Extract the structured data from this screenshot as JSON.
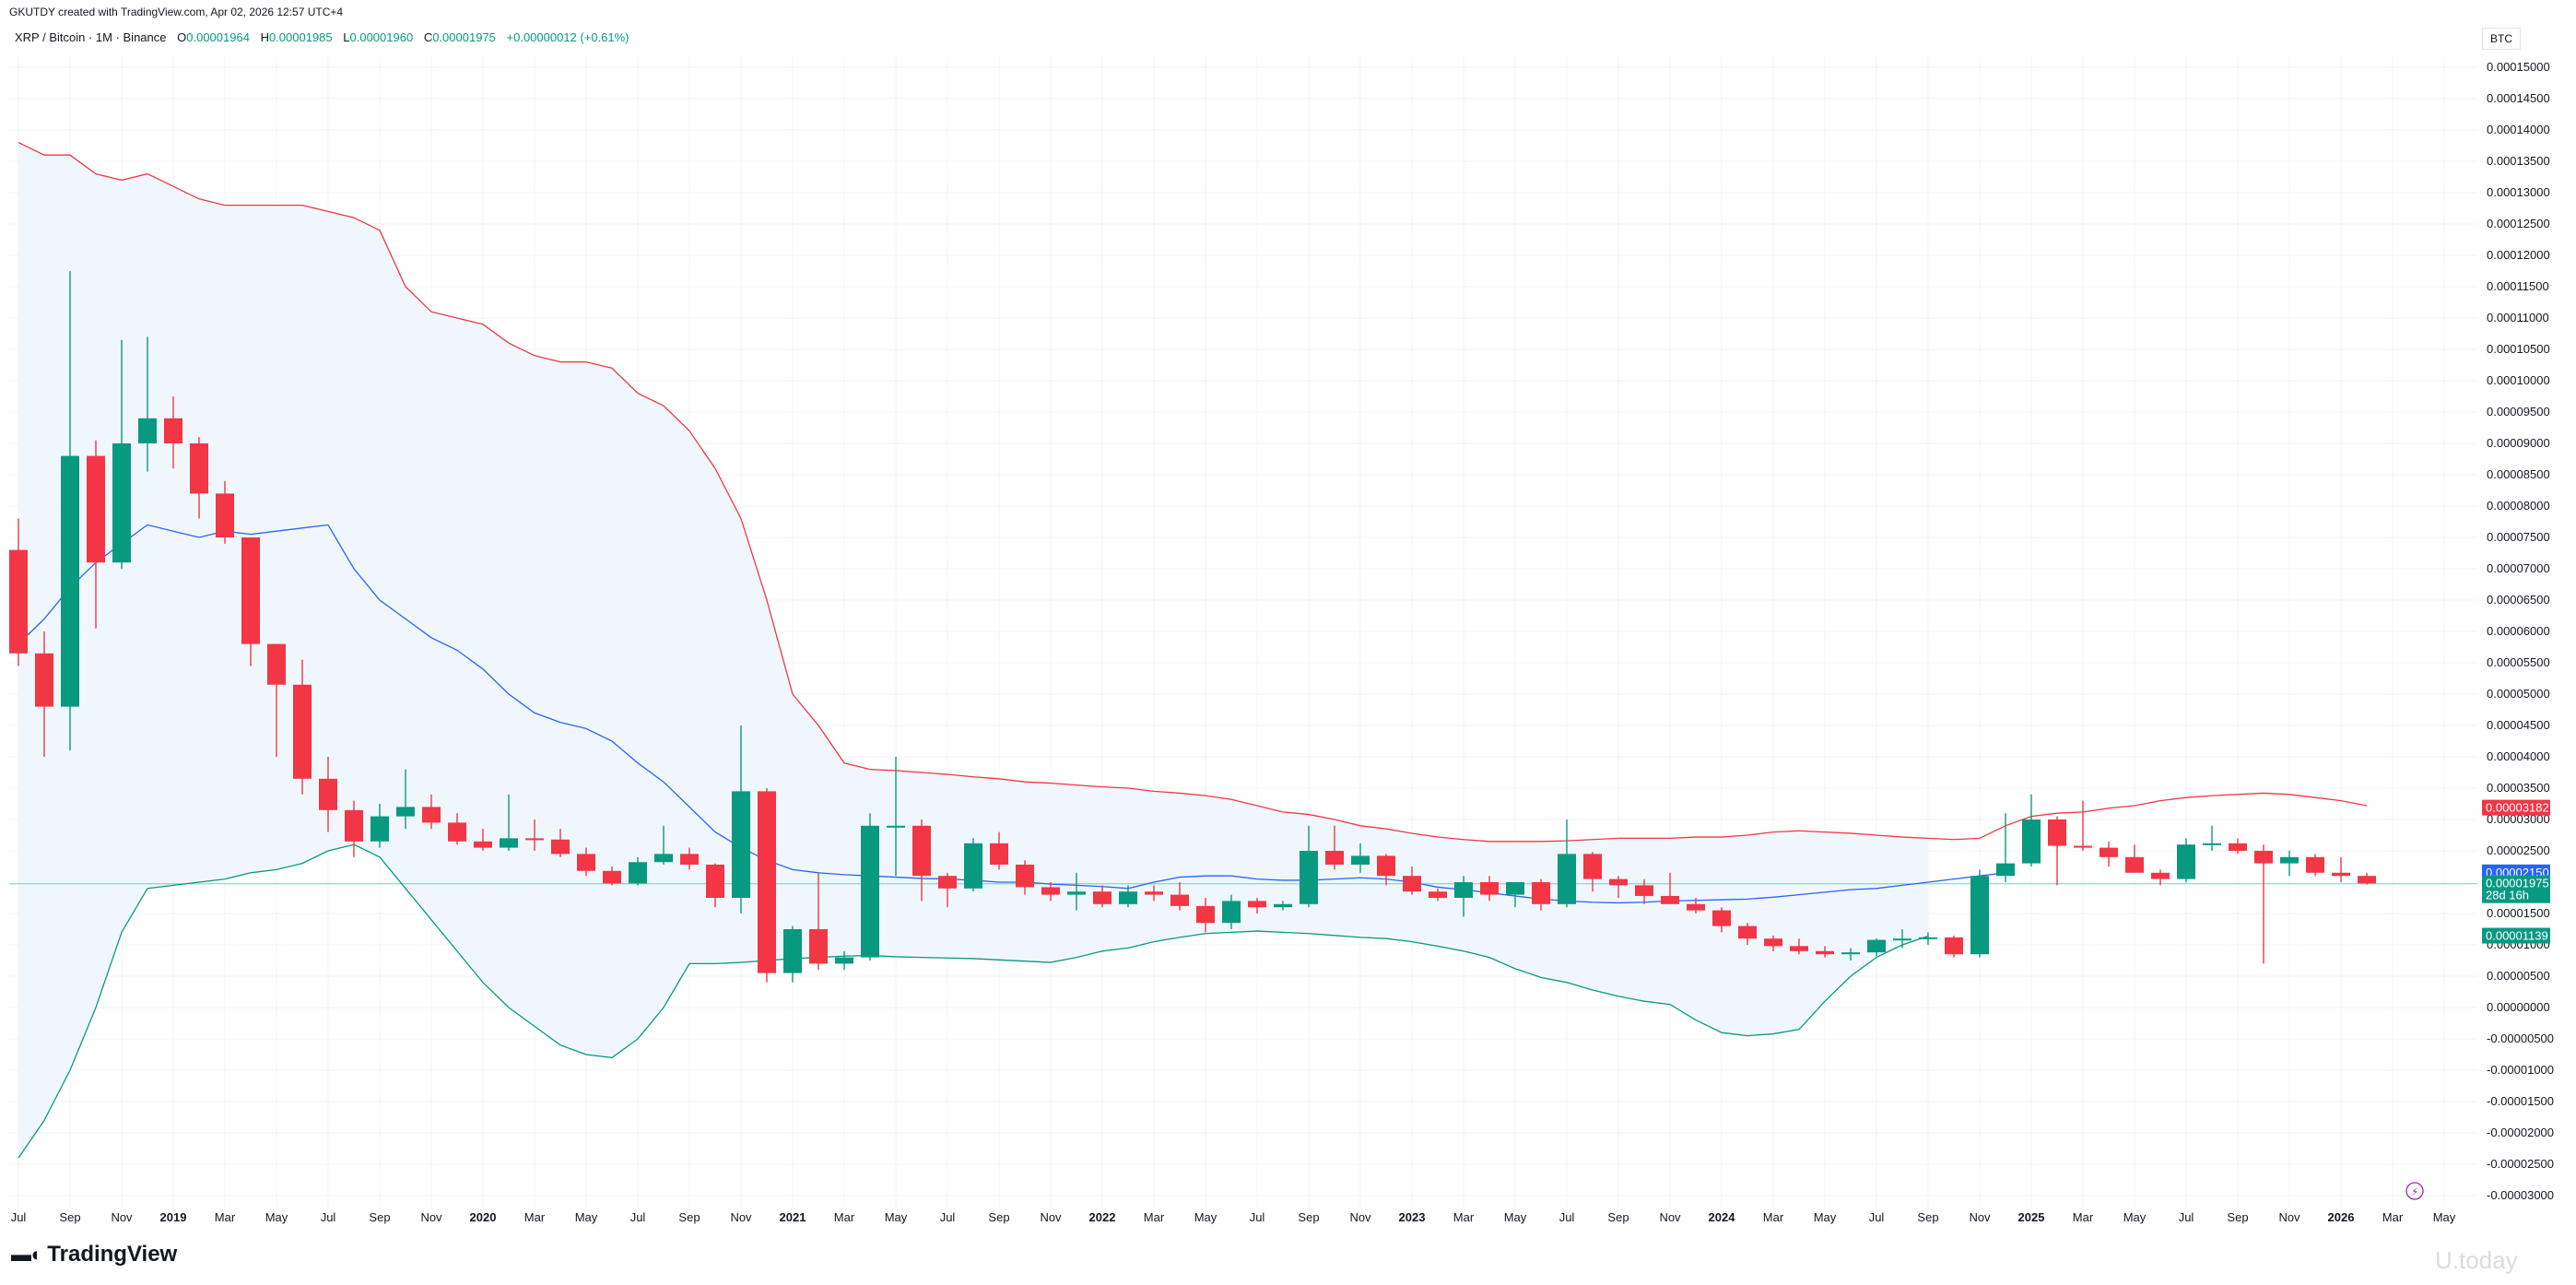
{
  "header": {
    "credit": "GKUTDY created with TradingView.com, Apr 02, 2026 12:57 UTC+4",
    "symbol": "XRP / Bitcoin · 1M · Binance",
    "o_label": "O",
    "o_val": "0.00001964",
    "h_label": "H",
    "h_val": "0.00001985",
    "l_label": "L",
    "l_val": "0.00001960",
    "c_label": "C",
    "c_val": "0.00001975",
    "change": "+0.00000012 (+0.61%)"
  },
  "currency_label": "BTC",
  "brand": "TradingView",
  "watermark": "U.today",
  "colors": {
    "up": "#089981",
    "down": "#f23645",
    "upper_band": "#f23645",
    "basis": "#2962ff",
    "lower_band": "#089981",
    "fill": "#eef6fc"
  },
  "price_tags": [
    {
      "value": "0.00003182",
      "color": "#f23645"
    },
    {
      "value": "0.00002150",
      "color": "#2962ff"
    },
    {
      "value": "0.00001975",
      "sub": "28d 16h",
      "color": "#089981"
    },
    {
      "value": "0.00001139",
      "color": "#089981"
    }
  ],
  "chart_data": {
    "type": "candlestick",
    "ylim": [
      -3e-05,
      0.000155
    ],
    "y_ticks": [
      "0.00015000",
      "0.00014500",
      "0.00014000",
      "0.00013500",
      "0.00013000",
      "0.00012500",
      "0.00012000",
      "0.00011500",
      "0.00011000",
      "0.00010500",
      "0.00010000",
      "0.00009500",
      "0.00009000",
      "0.00008500",
      "0.00008000",
      "0.00007500",
      "0.00007000",
      "0.00006500",
      "0.00006000",
      "0.00005500",
      "0.00005000",
      "0.00004500",
      "0.00004000",
      "0.00003500",
      "0.00003000",
      "0.00002500",
      "0.00002000",
      "0.00001500",
      "0.00001000",
      "0.00000500",
      "0.00000000",
      "-0.00000500",
      "-0.00001000",
      "-0.00001500",
      "-0.00002000",
      "-0.00002500",
      "-0.00003000"
    ],
    "x_labels": [
      {
        "label": "Jul",
        "bold": false
      },
      {
        "label": "Sep",
        "bold": false
      },
      {
        "label": "Nov",
        "bold": false
      },
      {
        "label": "2019",
        "bold": true
      },
      {
        "label": "Mar",
        "bold": false
      },
      {
        "label": "May",
        "bold": false
      },
      {
        "label": "Jul",
        "bold": false
      },
      {
        "label": "Sep",
        "bold": false
      },
      {
        "label": "Nov",
        "bold": false
      },
      {
        "label": "2020",
        "bold": true
      },
      {
        "label": "Mar",
        "bold": false
      },
      {
        "label": "May",
        "bold": false
      },
      {
        "label": "Jul",
        "bold": false
      },
      {
        "label": "Sep",
        "bold": false
      },
      {
        "label": "Nov",
        "bold": false
      },
      {
        "label": "2021",
        "bold": true
      },
      {
        "label": "Mar",
        "bold": false
      },
      {
        "label": "May",
        "bold": false
      },
      {
        "label": "Jul",
        "bold": false
      },
      {
        "label": "Sep",
        "bold": false
      },
      {
        "label": "Nov",
        "bold": false
      },
      {
        "label": "2022",
        "bold": true
      },
      {
        "label": "Mar",
        "bold": false
      },
      {
        "label": "May",
        "bold": false
      },
      {
        "label": "Jul",
        "bold": false
      },
      {
        "label": "Sep",
        "bold": false
      },
      {
        "label": "Nov",
        "bold": false
      },
      {
        "label": "2023",
        "bold": true
      },
      {
        "label": "Mar",
        "bold": false
      },
      {
        "label": "May",
        "bold": false
      },
      {
        "label": "Jul",
        "bold": false
      },
      {
        "label": "Sep",
        "bold": false
      },
      {
        "label": "Nov",
        "bold": false
      },
      {
        "label": "2024",
        "bold": true
      },
      {
        "label": "Mar",
        "bold": false
      },
      {
        "label": "May",
        "bold": false
      },
      {
        "label": "Jul",
        "bold": false
      },
      {
        "label": "Sep",
        "bold": false
      },
      {
        "label": "Nov",
        "bold": false
      },
      {
        "label": "2025",
        "bold": true
      },
      {
        "label": "Mar",
        "bold": false
      },
      {
        "label": "May",
        "bold": false
      },
      {
        "label": "Jul",
        "bold": false
      },
      {
        "label": "Sep",
        "bold": false
      },
      {
        "label": "Nov",
        "bold": false
      },
      {
        "label": "2026",
        "bold": true
      },
      {
        "label": "Mar",
        "bold": false
      },
      {
        "label": "May",
        "bold": false
      }
    ],
    "candles": [
      {
        "o": 7.3e-05,
        "h": 7.8e-05,
        "l": 5.45e-05,
        "c": 5.65e-05
      },
      {
        "o": 5.65e-05,
        "h": 6e-05,
        "l": 4e-05,
        "c": 4.8e-05
      },
      {
        "o": 4.8e-05,
        "h": 0.0001175,
        "l": 4.1e-05,
        "c": 8.8e-05
      },
      {
        "o": 8.8e-05,
        "h": 9.05e-05,
        "l": 6.05e-05,
        "c": 7.1e-05
      },
      {
        "o": 7.1e-05,
        "h": 0.0001065,
        "l": 7e-05,
        "c": 9e-05
      },
      {
        "o": 9e-05,
        "h": 0.000107,
        "l": 8.55e-05,
        "c": 9.4e-05
      },
      {
        "o": 9.4e-05,
        "h": 9.75e-05,
        "l": 8.6e-05,
        "c": 9e-05
      },
      {
        "o": 9e-05,
        "h": 9.1e-05,
        "l": 7.8e-05,
        "c": 8.2e-05
      },
      {
        "o": 8.2e-05,
        "h": 8.4e-05,
        "l": 7.4e-05,
        "c": 7.5e-05
      },
      {
        "o": 7.5e-05,
        "h": 7.5e-05,
        "l": 5.45e-05,
        "c": 5.8e-05
      },
      {
        "o": 5.8e-05,
        "h": 5.8e-05,
        "l": 4e-05,
        "c": 5.15e-05
      },
      {
        "o": 5.15e-05,
        "h": 5.55e-05,
        "l": 3.4e-05,
        "c": 3.65e-05
      },
      {
        "o": 3.65e-05,
        "h": 4e-05,
        "l": 2.8e-05,
        "c": 3.15e-05
      },
      {
        "o": 3.15e-05,
        "h": 3.3e-05,
        "l": 2.4e-05,
        "c": 2.65e-05
      },
      {
        "o": 2.65e-05,
        "h": 3.25e-05,
        "l": 2.55e-05,
        "c": 3.05e-05
      },
      {
        "o": 3.05e-05,
        "h": 3.8e-05,
        "l": 2.85e-05,
        "c": 3.2e-05
      },
      {
        "o": 3.2e-05,
        "h": 3.4e-05,
        "l": 2.85e-05,
        "c": 2.95e-05
      },
      {
        "o": 2.95e-05,
        "h": 3.1e-05,
        "l": 2.6e-05,
        "c": 2.65e-05
      },
      {
        "o": 2.65e-05,
        "h": 2.85e-05,
        "l": 2.5e-05,
        "c": 2.55e-05
      },
      {
        "o": 2.55e-05,
        "h": 3.4e-05,
        "l": 2.5e-05,
        "c": 2.7e-05
      },
      {
        "o": 2.7e-05,
        "h": 3e-05,
        "l": 2.5e-05,
        "c": 2.68e-05
      },
      {
        "o": 2.68e-05,
        "h": 2.85e-05,
        "l": 2.4e-05,
        "c": 2.45e-05
      },
      {
        "o": 2.45e-05,
        "h": 2.55e-05,
        "l": 2.1e-05,
        "c": 2.18e-05
      },
      {
        "o": 2.18e-05,
        "h": 2.25e-05,
        "l": 1.95e-05,
        "c": 1.98e-05
      },
      {
        "o": 1.98e-05,
        "h": 2.4e-05,
        "l": 1.95e-05,
        "c": 2.32e-05
      },
      {
        "o": 2.32e-05,
        "h": 2.9e-05,
        "l": 2.28e-05,
        "c": 2.45e-05
      },
      {
        "o": 2.45e-05,
        "h": 2.55e-05,
        "l": 2.2e-05,
        "c": 2.28e-05
      },
      {
        "o": 2.28e-05,
        "h": 2.3e-05,
        "l": 1.6e-05,
        "c": 1.75e-05
      },
      {
        "o": 1.75e-05,
        "h": 4.5e-05,
        "l": 1.5e-05,
        "c": 3.45e-05
      },
      {
        "o": 3.45e-05,
        "h": 3.5e-05,
        "l": 4e-06,
        "c": 5.5e-06
      },
      {
        "o": 5.5e-06,
        "h": 1.3e-05,
        "l": 4e-06,
        "c": 1.25e-05
      },
      {
        "o": 1.25e-05,
        "h": 2.15e-05,
        "l": 6e-06,
        "c": 7e-06
      },
      {
        "o": 7e-06,
        "h": 9e-06,
        "l": 6e-06,
        "c": 8e-06
      },
      {
        "o": 8e-06,
        "h": 3.1e-05,
        "l": 7.5e-06,
        "c": 2.9e-05
      },
      {
        "o": 2.9e-05,
        "h": 4e-05,
        "l": 2.1e-05,
        "c": 2.9e-05
      },
      {
        "o": 2.9e-05,
        "h": 3e-05,
        "l": 1.7e-05,
        "c": 2.1e-05
      },
      {
        "o": 2.1e-05,
        "h": 2.15e-05,
        "l": 1.6e-05,
        "c": 1.9e-05
      },
      {
        "o": 1.9e-05,
        "h": 2.7e-05,
        "l": 1.85e-05,
        "c": 2.62e-05
      },
      {
        "o": 2.62e-05,
        "h": 2.8e-05,
        "l": 2.2e-05,
        "c": 2.28e-05
      },
      {
        "o": 2.28e-05,
        "h": 2.35e-05,
        "l": 1.8e-05,
        "c": 1.92e-05
      },
      {
        "o": 1.92e-05,
        "h": 2e-05,
        "l": 1.7e-05,
        "c": 1.8e-05
      },
      {
        "o": 1.8e-05,
        "h": 2.15e-05,
        "l": 1.55e-05,
        "c": 1.85e-05
      },
      {
        "o": 1.85e-05,
        "h": 1.95e-05,
        "l": 1.6e-05,
        "c": 1.65e-05
      },
      {
        "o": 1.65e-05,
        "h": 1.95e-05,
        "l": 1.6e-05,
        "c": 1.85e-05
      },
      {
        "o": 1.85e-05,
        "h": 1.95e-05,
        "l": 1.7e-05,
        "c": 1.8e-05
      },
      {
        "o": 1.8e-05,
        "h": 2e-05,
        "l": 1.55e-05,
        "c": 1.62e-05
      },
      {
        "o": 1.62e-05,
        "h": 1.75e-05,
        "l": 1.2e-05,
        "c": 1.35e-05
      },
      {
        "o": 1.35e-05,
        "h": 1.8e-05,
        "l": 1.25e-05,
        "c": 1.7e-05
      },
      {
        "o": 1.7e-05,
        "h": 1.75e-05,
        "l": 1.5e-05,
        "c": 1.6e-05
      },
      {
        "o": 1.6e-05,
        "h": 1.7e-05,
        "l": 1.55e-05,
        "c": 1.65e-05
      },
      {
        "o": 1.65e-05,
        "h": 2.9e-05,
        "l": 1.6e-05,
        "c": 2.5e-05
      },
      {
        "o": 2.5e-05,
        "h": 2.9e-05,
        "l": 2.2e-05,
        "c": 2.28e-05
      },
      {
        "o": 2.28e-05,
        "h": 2.62e-05,
        "l": 2.15e-05,
        "c": 2.42e-05
      },
      {
        "o": 2.42e-05,
        "h": 2.45e-05,
        "l": 1.95e-05,
        "c": 2.1e-05
      },
      {
        "o": 2.1e-05,
        "h": 2.25e-05,
        "l": 1.8e-05,
        "c": 1.85e-05
      },
      {
        "o": 1.85e-05,
        "h": 1.9e-05,
        "l": 1.7e-05,
        "c": 1.75e-05
      },
      {
        "o": 1.75e-05,
        "h": 2.1e-05,
        "l": 1.45e-05,
        "c": 2e-05
      },
      {
        "o": 2e-05,
        "h": 2.1e-05,
        "l": 1.7e-05,
        "c": 1.8e-05
      },
      {
        "o": 1.8e-05,
        "h": 2e-05,
        "l": 1.6e-05,
        "c": 2e-05
      },
      {
        "o": 2e-05,
        "h": 2.05e-05,
        "l": 1.55e-05,
        "c": 1.65e-05
      },
      {
        "o": 1.65e-05,
        "h": 3e-05,
        "l": 1.6e-05,
        "c": 2.45e-05
      },
      {
        "o": 2.45e-05,
        "h": 2.48e-05,
        "l": 1.85e-05,
        "c": 2.05e-05
      },
      {
        "o": 2.05e-05,
        "h": 2.1e-05,
        "l": 1.75e-05,
        "c": 1.95e-05
      },
      {
        "o": 1.95e-05,
        "h": 2.05e-05,
        "l": 1.65e-05,
        "c": 1.78e-05
      },
      {
        "o": 1.78e-05,
        "h": 2.15e-05,
        "l": 1.65e-05,
        "c": 1.65e-05
      },
      {
        "o": 1.65e-05,
        "h": 1.75e-05,
        "l": 1.5e-05,
        "c": 1.55e-05
      },
      {
        "o": 1.55e-05,
        "h": 1.6e-05,
        "l": 1.2e-05,
        "c": 1.3e-05
      },
      {
        "o": 1.3e-05,
        "h": 1.35e-05,
        "l": 1e-05,
        "c": 1.1e-05
      },
      {
        "o": 1.1e-05,
        "h": 1.15e-05,
        "l": 9e-06,
        "c": 9.8e-06
      },
      {
        "o": 9.8e-06,
        "h": 1.1e-05,
        "l": 8.5e-06,
        "c": 9e-06
      },
      {
        "o": 9e-06,
        "h": 9.8e-06,
        "l": 8e-06,
        "c": 8.5e-06
      },
      {
        "o": 8.5e-06,
        "h": 9.5e-06,
        "l": 7.5e-06,
        "c": 8.8e-06
      },
      {
        "o": 8.8e-06,
        "h": 1.1e-05,
        "l": 8.2e-06,
        "c": 1.08e-05
      },
      {
        "o": 1.08e-05,
        "h": 1.25e-05,
        "l": 9.5e-06,
        "c": 1.1e-05
      },
      {
        "o": 1.1e-05,
        "h": 1.2e-05,
        "l": 1e-05,
        "c": 1.12e-05
      },
      {
        "o": 1.12e-05,
        "h": 1.15e-05,
        "l": 8e-06,
        "c": 8.5e-06
      },
      {
        "o": 8.5e-06,
        "h": 2.2e-05,
        "l": 8e-06,
        "c": 2.1e-05
      },
      {
        "o": 2.1e-05,
        "h": 3.1e-05,
        "l": 2e-05,
        "c": 2.3e-05
      },
      {
        "o": 2.3e-05,
        "h": 3.4e-05,
        "l": 2.25e-05,
        "c": 3e-05
      },
      {
        "o": 3e-05,
        "h": 3.05e-05,
        "l": 1.95e-05,
        "c": 2.58e-05
      },
      {
        "o": 2.58e-05,
        "h": 3.3e-05,
        "l": 2.5e-05,
        "c": 2.55e-05
      },
      {
        "o": 2.55e-05,
        "h": 2.65e-05,
        "l": 2.25e-05,
        "c": 2.4e-05
      },
      {
        "o": 2.4e-05,
        "h": 2.6e-05,
        "l": 2.15e-05,
        "c": 2.15e-05
      },
      {
        "o": 2.15e-05,
        "h": 2.2e-05,
        "l": 1.95e-05,
        "c": 2.05e-05
      },
      {
        "o": 2.05e-05,
        "h": 2.7e-05,
        "l": 2e-05,
        "c": 2.6e-05
      },
      {
        "o": 2.6e-05,
        "h": 2.9e-05,
        "l": 2.5e-05,
        "c": 2.62e-05
      },
      {
        "o": 2.62e-05,
        "h": 2.7e-05,
        "l": 2.45e-05,
        "c": 2.5e-05
      },
      {
        "o": 2.5e-05,
        "h": 2.6e-05,
        "l": 7e-06,
        "c": 2.3e-05
      },
      {
        "o": 2.3e-05,
        "h": 2.5e-05,
        "l": 2.1e-05,
        "c": 2.4e-05
      },
      {
        "o": 2.4e-05,
        "h": 2.45e-05,
        "l": 2.1e-05,
        "c": 2.15e-05
      },
      {
        "o": 2.15e-05,
        "h": 2.4e-05,
        "l": 2e-05,
        "c": 2.1e-05
      },
      {
        "o": 2.1e-05,
        "h": 2.15e-05,
        "l": 1.96e-05,
        "c": 1.98e-05
      }
    ],
    "upper_band": [
      0.000138,
      0.000136,
      0.000136,
      0.000133,
      0.000132,
      0.000133,
      0.000131,
      0.000129,
      0.000128,
      0.000128,
      0.000128,
      0.000128,
      0.000127,
      0.000126,
      0.000124,
      0.000115,
      0.000111,
      0.00011,
      0.000109,
      0.000106,
      0.000104,
      0.000103,
      0.000103,
      0.000102,
      9.8e-05,
      9.6e-05,
      9.2e-05,
      8.6e-05,
      7.8e-05,
      6.5e-05,
      5e-05,
      4.5e-05,
      3.9e-05,
      3.8e-05,
      3.78e-05,
      3.75e-05,
      3.72e-05,
      3.68e-05,
      3.65e-05,
      3.6e-05,
      3.58e-05,
      3.55e-05,
      3.52e-05,
      3.5e-05,
      3.45e-05,
      3.42e-05,
      3.38e-05,
      3.32e-05,
      3.22e-05,
      3.12e-05,
      3.08e-05,
      3e-05,
      2.9e-05,
      2.85e-05,
      2.78e-05,
      2.72e-05,
      2.68e-05,
      2.65e-05,
      2.65e-05,
      2.65e-05,
      2.66e-05,
      2.68e-05,
      2.7e-05,
      2.7e-05,
      2.7e-05,
      2.72e-05,
      2.72e-05,
      2.75e-05,
      2.8e-05,
      2.82e-05,
      2.8e-05,
      2.78e-05,
      2.75e-05,
      2.72e-05,
      2.7e-05,
      2.68e-05,
      2.7e-05,
      2.9e-05,
      3.05e-05,
      3.1e-05,
      3.12e-05,
      3.18e-05,
      3.22e-05,
      3.3e-05,
      3.35e-05,
      3.38e-05,
      3.4e-05,
      3.42e-05,
      3.4e-05,
      3.35e-05,
      3.3e-05,
      3.22e-05
    ],
    "basis": [
      5.8e-05,
      6.2e-05,
      6.7e-05,
      7.1e-05,
      7.4e-05,
      7.7e-05,
      7.6e-05,
      7.5e-05,
      7.6e-05,
      7.55e-05,
      7.6e-05,
      7.65e-05,
      7.7e-05,
      7e-05,
      6.5e-05,
      6.2e-05,
      5.9e-05,
      5.7e-05,
      5.4e-05,
      5e-05,
      4.7e-05,
      4.55e-05,
      4.45e-05,
      4.25e-05,
      3.9e-05,
      3.6e-05,
      3.2e-05,
      2.8e-05,
      2.55e-05,
      2.35e-05,
      2.2e-05,
      2.15e-05,
      2.12e-05,
      2.1e-05,
      2.08e-05,
      2.06e-05,
      2.05e-05,
      2.03e-05,
      2e-05,
      2e-05,
      1.97e-05,
      1.95e-05,
      1.93e-05,
      1.9e-05,
      2e-05,
      2.08e-05,
      2.1e-05,
      2.1e-05,
      2.05e-05,
      2.03e-05,
      2.03e-05,
      2.05e-05,
      2.07e-05,
      2.05e-05,
      2e-05,
      1.92e-05,
      1.88e-05,
      1.83e-05,
      1.78e-05,
      1.73e-05,
      1.7e-05,
      1.68e-05,
      1.67e-05,
      1.68e-05,
      1.7e-05,
      1.71e-05,
      1.72e-05,
      1.73e-05,
      1.76e-05,
      1.8e-05,
      1.84e-05,
      1.88e-05,
      1.9e-05,
      1.95e-05,
      2e-05,
      2.05e-05,
      2.1e-05,
      2.15e-05
    ],
    "lower_band": [
      -2.4e-05,
      -1.8e-05,
      -1e-05,
      0.0,
      1.2e-05,
      1.9e-05,
      1.95e-05,
      2e-05,
      2.05e-05,
      2.15e-05,
      2.2e-05,
      2.3e-05,
      2.5e-05,
      2.6e-05,
      2.4e-05,
      1.9e-05,
      1.4e-05,
      9e-06,
      4e-06,
      0.0,
      -3e-06,
      -6e-06,
      -7.5e-06,
      -8e-06,
      -5e-06,
      0.0,
      7e-06,
      7e-06,
      7.2e-06,
      7.5e-06,
      7.8e-06,
      8e-06,
      8.2e-06,
      8.3e-06,
      8.1e-06,
      8e-06,
      7.9e-06,
      7.8e-06,
      7.6e-06,
      7.4e-06,
      7.2e-06,
      8e-06,
      9e-06,
      9.5e-06,
      1.05e-05,
      1.12e-05,
      1.18e-05,
      1.2e-05,
      1.22e-05,
      1.2e-05,
      1.18e-05,
      1.15e-05,
      1.12e-05,
      1.1e-05,
      1.05e-05,
      9.8e-06,
      9e-06,
      8e-06,
      6.2e-06,
      4.8e-06,
      4e-06,
      2.8e-06,
      1.8e-06,
      1e-06,
      5e-07,
      -2e-06,
      -4e-06,
      -4.5e-06,
      -4.2e-06,
      -3.5e-06,
      1e-06,
      5e-06,
      8e-06,
      1e-05,
      1.14e-05
    ]
  }
}
